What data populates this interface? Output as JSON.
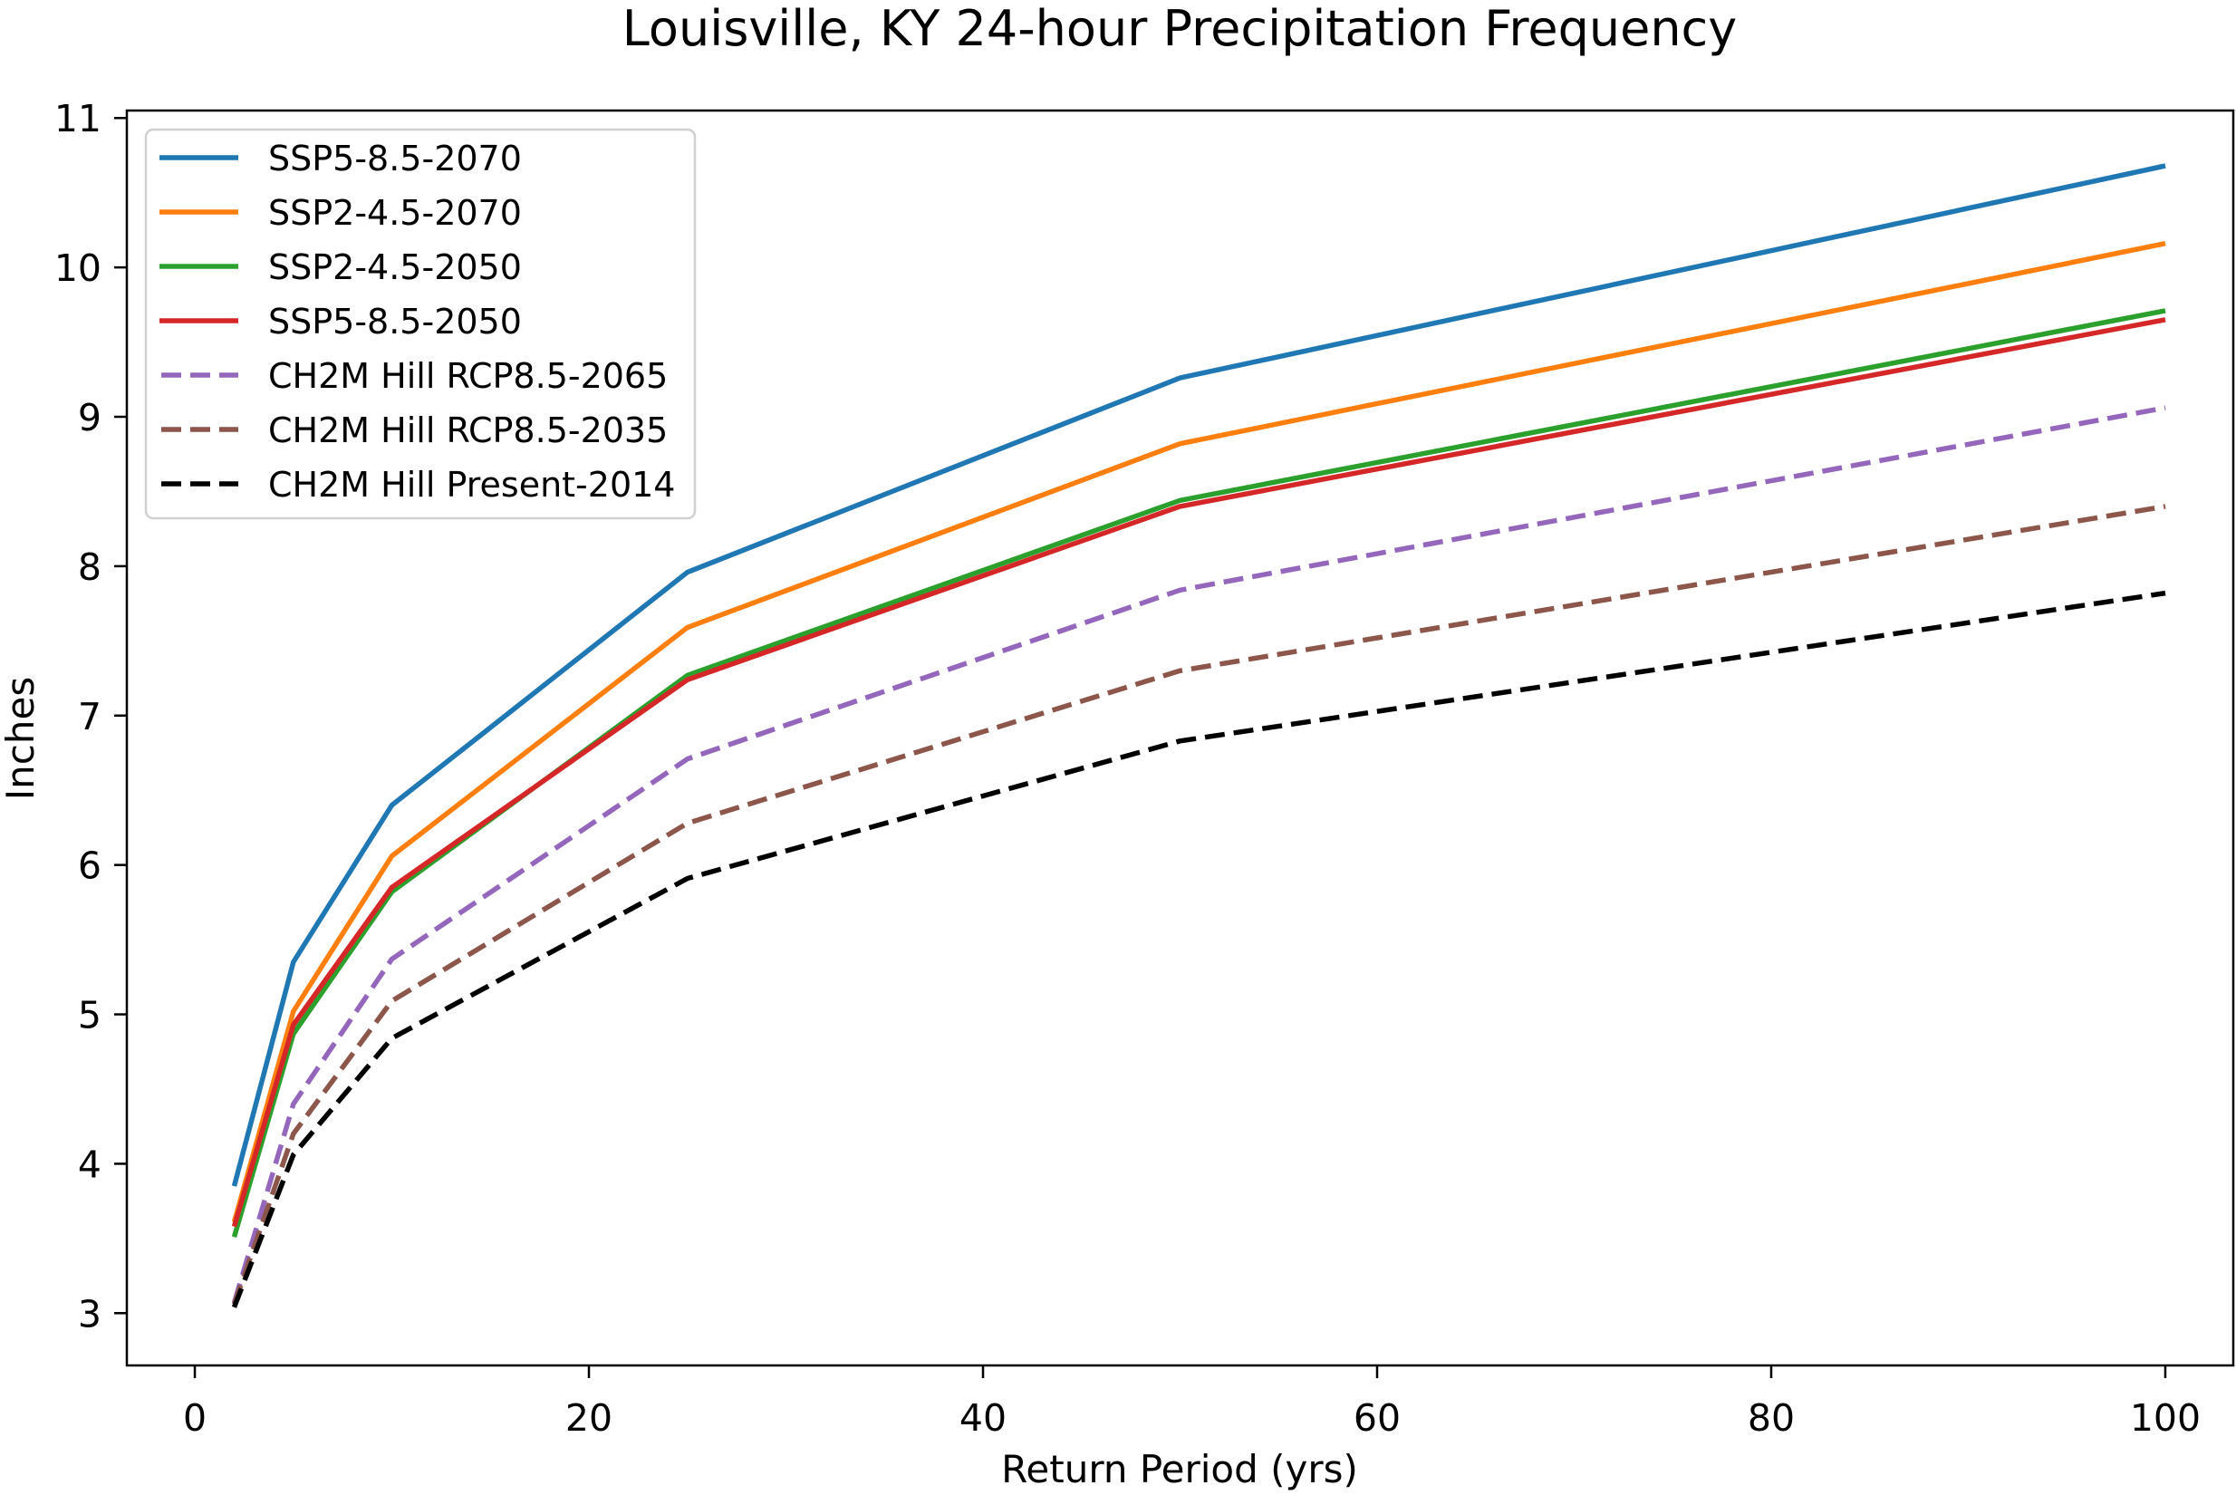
{
  "chart_data": {
    "type": "line",
    "title": "Louisville, KY 24-hour Precipitation Frequency",
    "xlabel": "Return Period (yrs)",
    "ylabel": "Inches",
    "xlim": [
      -3.45,
      103.45
    ],
    "ylim": [
      2.65,
      11.05
    ],
    "xticks": [
      0,
      20,
      40,
      60,
      80,
      100
    ],
    "xtick_labels": [
      "0",
      "20",
      "40",
      "60",
      "80",
      "100"
    ],
    "yticks": [
      3,
      4,
      5,
      6,
      7,
      8,
      9,
      10,
      11
    ],
    "ytick_labels": [
      "3",
      "4",
      "5",
      "6",
      "7",
      "8",
      "9",
      "10",
      "11"
    ],
    "grid": false,
    "legend_position": "top-left",
    "x": [
      2,
      5,
      10,
      25,
      50,
      100
    ],
    "series": [
      {
        "name": "SSP5-8.5-2070",
        "color": "#1f77b4",
        "style": "solid",
        "values": [
          3.85,
          5.35,
          6.4,
          7.96,
          9.26,
          10.68
        ]
      },
      {
        "name": "SSP2-4.5-2070",
        "color": "#ff7f0e",
        "style": "solid",
        "values": [
          3.61,
          5.02,
          6.06,
          7.59,
          8.82,
          10.16
        ]
      },
      {
        "name": "SSP2-4.5-2050",
        "color": "#2ca02c",
        "style": "solid",
        "values": [
          3.51,
          4.87,
          5.82,
          7.27,
          8.44,
          9.71
        ]
      },
      {
        "name": "SSP5-8.5-2050",
        "color": "#d62728",
        "style": "solid",
        "values": [
          3.58,
          4.93,
          5.85,
          7.24,
          8.4,
          9.65
        ]
      },
      {
        "name": "CH2M Hill RCP8.5-2065",
        "color": "#9467bd",
        "style": "dashed",
        "values": [
          3.07,
          4.4,
          5.37,
          6.71,
          7.84,
          9.06
        ]
      },
      {
        "name": "CH2M Hill RCP8.5-2035",
        "color": "#8c564b",
        "style": "dashed",
        "values": [
          3.06,
          4.2,
          5.09,
          6.28,
          7.3,
          8.4
        ]
      },
      {
        "name": "CH2M Hill Present-2014",
        "color": "#000000",
        "style": "dashed",
        "values": [
          3.04,
          4.06,
          4.84,
          5.91,
          6.83,
          7.82
        ]
      }
    ]
  }
}
